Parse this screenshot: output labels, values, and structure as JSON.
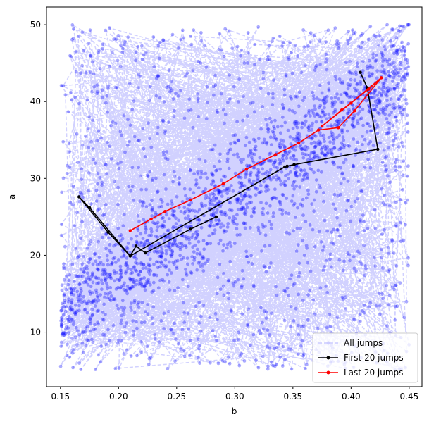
{
  "chart_data": {
    "type": "line",
    "title": "",
    "xlabel": "b",
    "ylabel": "a",
    "xlim": [
      0.138,
      0.461
    ],
    "ylim": [
      2.9,
      52.3
    ],
    "xticks": [
      0.15,
      0.2,
      0.25,
      0.3,
      0.35,
      0.4,
      0.45
    ],
    "xtick_labels": [
      "0.15",
      "0.20",
      "0.25",
      "0.30",
      "0.35",
      "0.40",
      "0.45"
    ],
    "yticks": [
      10,
      20,
      30,
      40,
      50
    ],
    "ytick_labels": [
      "10",
      "20",
      "30",
      "40",
      "50"
    ],
    "grid": false,
    "legend": {
      "placement": "bottom-right",
      "entries": [
        {
          "label": "All jumps",
          "color": "#ccccff",
          "style": "dashed",
          "marker": "dot"
        },
        {
          "label": "First 20 jumps",
          "color": "#000000",
          "style": "solid",
          "marker": "dot"
        },
        {
          "label": "Last 20 jumps",
          "color": "#ff0000",
          "style": "solid",
          "marker": "dot"
        }
      ]
    },
    "colors": {
      "all_jumps_line": "#ccccff",
      "all_jumps_points": "#0000ff",
      "first_20": "#000000",
      "last_20": "#ff0000"
    },
    "series": [
      {
        "name": "First 20 jumps",
        "points": [
          [
            0.284,
            25.0
          ],
          [
            0.262,
            23.4
          ],
          [
            0.223,
            20.3
          ],
          [
            0.215,
            21.2
          ],
          [
            0.21,
            19.9
          ],
          [
            0.191,
            23.0
          ],
          [
            0.166,
            27.6
          ],
          [
            0.175,
            26.2
          ],
          [
            0.21,
            19.9
          ],
          [
            0.343,
            31.5
          ],
          [
            0.345,
            31.6
          ],
          [
            0.351,
            31.8
          ],
          [
            0.423,
            33.8
          ],
          [
            0.414,
            41.8
          ],
          [
            0.408,
            43.8
          ]
        ]
      },
      {
        "name": "Last 20 jumps",
        "points": [
          [
            0.21,
            23.2
          ],
          [
            0.228,
            24.7
          ],
          [
            0.24,
            25.7
          ],
          [
            0.262,
            27.2
          ],
          [
            0.29,
            29.3
          ],
          [
            0.31,
            31.2
          ],
          [
            0.335,
            33.1
          ],
          [
            0.355,
            34.6
          ],
          [
            0.372,
            36.3
          ],
          [
            0.389,
            36.6
          ],
          [
            0.403,
            38.8
          ],
          [
            0.426,
            43.1
          ],
          [
            0.415,
            41.6
          ],
          [
            0.392,
            38.9
          ],
          [
            0.375,
            36.8
          ],
          [
            0.4,
            39.8
          ],
          [
            0.426,
            43.1
          ]
        ]
      }
    ]
  }
}
